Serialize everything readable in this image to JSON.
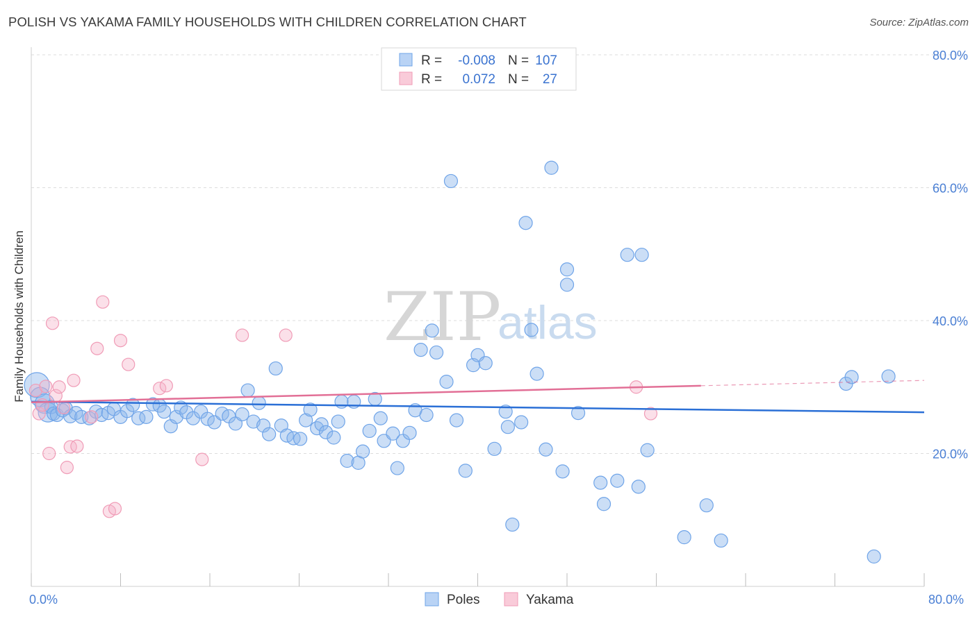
{
  "chart_data": {
    "type": "scatter",
    "title": "POLISH VS YAKAMA FAMILY HOUSEHOLDS WITH CHILDREN CORRELATION CHART",
    "source": "Source: ZipAtlas.com",
    "ylabel": "Family Households with Children",
    "xlim": [
      0,
      80
    ],
    "ylim": [
      0,
      80
    ],
    "x_tick_labels": [
      "0.0%",
      "80.0%"
    ],
    "y_tick_labels": [
      "20.0%",
      "40.0%",
      "60.0%",
      "80.0%"
    ],
    "y_ticks": [
      20,
      40,
      60,
      80
    ],
    "watermark": {
      "zip": "ZIP",
      "atlas": "atlas"
    },
    "legend": {
      "r_label": "R =",
      "n_label": "N =",
      "rows": [
        {
          "name": "Poles",
          "r": "-0.008",
          "n": "107",
          "color": "#6fa4e8"
        },
        {
          "name": "Yakama",
          "r": "0.072",
          "n": "27",
          "color": "#f09bb6"
        }
      ]
    },
    "series": [
      {
        "name": "Poles",
        "color": "#6fa4e8",
        "line_color": "#2a6fd6",
        "trend": {
          "x": [
            0,
            80
          ],
          "y": [
            27.8,
            26.2
          ]
        },
        "points": [
          [
            0.5,
            30.3
          ],
          [
            0.8,
            28.5
          ],
          [
            1.2,
            27.5
          ],
          [
            1.5,
            26.2
          ],
          [
            1.8,
            27.0
          ],
          [
            2.0,
            26.0
          ],
          [
            2.3,
            25.8
          ],
          [
            2.8,
            26.5
          ],
          [
            3.1,
            26.8
          ],
          [
            3.5,
            25.6
          ],
          [
            4.0,
            26.1
          ],
          [
            4.5,
            25.5
          ],
          [
            5.2,
            25.3
          ],
          [
            5.8,
            26.3
          ],
          [
            6.3,
            25.8
          ],
          [
            6.9,
            26.1
          ],
          [
            7.4,
            26.7
          ],
          [
            8.0,
            25.5
          ],
          [
            8.6,
            26.4
          ],
          [
            9.1,
            27.3
          ],
          [
            9.6,
            25.3
          ],
          [
            10.3,
            25.5
          ],
          [
            10.9,
            27.4
          ],
          [
            11.5,
            27.2
          ],
          [
            11.9,
            26.3
          ],
          [
            12.5,
            24.1
          ],
          [
            13.0,
            25.5
          ],
          [
            13.4,
            26.9
          ],
          [
            13.9,
            26.2
          ],
          [
            14.5,
            25.3
          ],
          [
            15.2,
            26.3
          ],
          [
            15.8,
            25.2
          ],
          [
            16.4,
            24.7
          ],
          [
            17.1,
            26.0
          ],
          [
            17.7,
            25.6
          ],
          [
            18.3,
            24.5
          ],
          [
            18.9,
            25.9
          ],
          [
            19.4,
            29.5
          ],
          [
            19.9,
            24.8
          ],
          [
            20.4,
            27.6
          ],
          [
            20.8,
            24.2
          ],
          [
            21.3,
            22.9
          ],
          [
            21.9,
            32.8
          ],
          [
            22.4,
            24.2
          ],
          [
            22.9,
            22.7
          ],
          [
            23.5,
            22.3
          ],
          [
            24.1,
            22.2
          ],
          [
            24.6,
            25.0
          ],
          [
            25.0,
            26.6
          ],
          [
            25.6,
            23.8
          ],
          [
            26.0,
            24.4
          ],
          [
            26.4,
            23.2
          ],
          [
            27.1,
            22.4
          ],
          [
            27.5,
            24.8
          ],
          [
            27.8,
            27.8
          ],
          [
            28.3,
            18.9
          ],
          [
            28.9,
            27.8
          ],
          [
            29.3,
            18.6
          ],
          [
            29.7,
            20.3
          ],
          [
            30.3,
            23.4
          ],
          [
            30.8,
            28.2
          ],
          [
            31.3,
            25.3
          ],
          [
            31.6,
            21.9
          ],
          [
            32.4,
            23.0
          ],
          [
            32.8,
            17.8
          ],
          [
            33.3,
            21.9
          ],
          [
            33.9,
            23.1
          ],
          [
            34.4,
            26.5
          ],
          [
            34.9,
            35.6
          ],
          [
            35.4,
            25.8
          ],
          [
            35.9,
            38.5
          ],
          [
            36.3,
            35.2
          ],
          [
            37.2,
            30.8
          ],
          [
            37.6,
            61.0
          ],
          [
            38.1,
            25.0
          ],
          [
            38.9,
            17.4
          ],
          [
            39.6,
            33.3
          ],
          [
            40.0,
            34.8
          ],
          [
            40.7,
            33.6
          ],
          [
            41.5,
            20.7
          ],
          [
            42.5,
            26.3
          ],
          [
            42.7,
            24.0
          ],
          [
            43.1,
            9.3
          ],
          [
            43.9,
            24.7
          ],
          [
            44.3,
            54.7
          ],
          [
            44.8,
            38.6
          ],
          [
            45.3,
            32.0
          ],
          [
            46.1,
            20.6
          ],
          [
            46.6,
            63.0
          ],
          [
            47.6,
            17.3
          ],
          [
            48.0,
            47.7
          ],
          [
            48.0,
            45.4
          ],
          [
            49.0,
            26.1
          ],
          [
            51.0,
            15.6
          ],
          [
            51.3,
            12.4
          ],
          [
            52.5,
            15.9
          ],
          [
            53.4,
            49.9
          ],
          [
            54.4,
            15.0
          ],
          [
            54.7,
            49.9
          ],
          [
            55.2,
            20.5
          ],
          [
            58.5,
            7.4
          ],
          [
            60.5,
            12.2
          ],
          [
            61.8,
            6.9
          ],
          [
            73.0,
            30.5
          ],
          [
            73.5,
            31.5
          ],
          [
            75.5,
            4.5
          ],
          [
            76.8,
            31.6
          ]
        ]
      },
      {
        "name": "Yakama",
        "color": "#f09bb6",
        "line_color": "#e26f96",
        "trend": {
          "x": [
            0,
            60
          ],
          "y": [
            27.7,
            30.2
          ]
        },
        "trend_dashed": {
          "x": [
            60,
            80
          ],
          "y": [
            30.2,
            31.0
          ]
        },
        "points": [
          [
            0.4,
            29.5
          ],
          [
            0.7,
            26.0
          ],
          [
            1.0,
            27.3
          ],
          [
            1.3,
            30.1
          ],
          [
            1.6,
            20.0
          ],
          [
            1.9,
            39.6
          ],
          [
            2.2,
            28.7
          ],
          [
            2.5,
            30.0
          ],
          [
            2.9,
            26.9
          ],
          [
            3.2,
            17.9
          ],
          [
            3.5,
            21.0
          ],
          [
            3.8,
            31.0
          ],
          [
            4.1,
            21.1
          ],
          [
            5.4,
            25.5
          ],
          [
            5.9,
            35.8
          ],
          [
            6.4,
            42.8
          ],
          [
            7.0,
            11.3
          ],
          [
            7.5,
            11.7
          ],
          [
            8.0,
            37.0
          ],
          [
            8.7,
            33.4
          ],
          [
            11.5,
            29.8
          ],
          [
            12.1,
            30.2
          ],
          [
            15.3,
            19.1
          ],
          [
            18.9,
            37.8
          ],
          [
            22.8,
            37.8
          ],
          [
            54.2,
            30.0
          ],
          [
            55.5,
            26.0
          ]
        ]
      }
    ]
  }
}
